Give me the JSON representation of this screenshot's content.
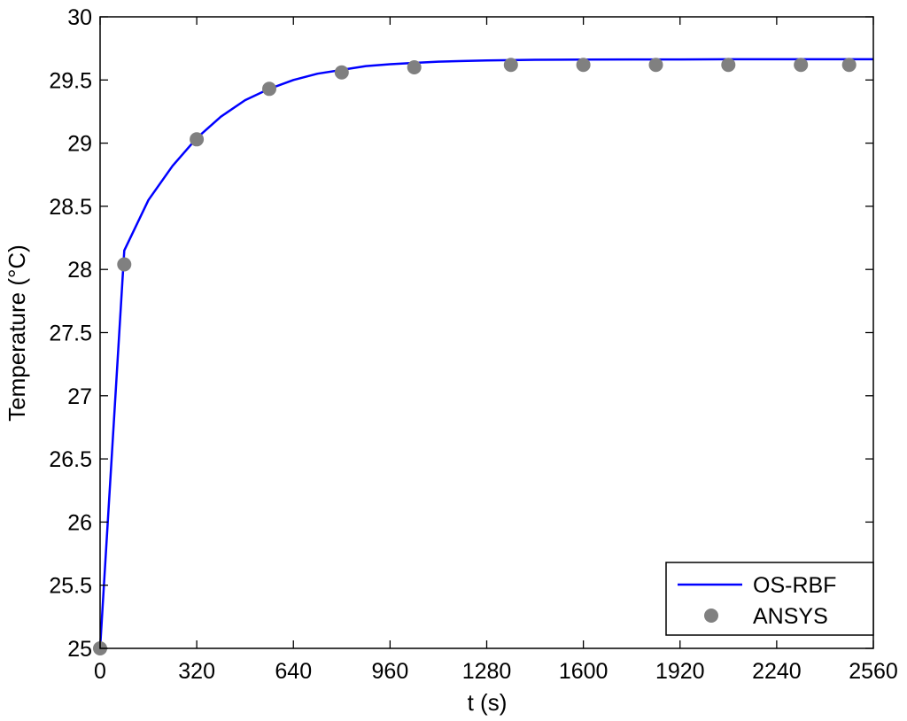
{
  "chart_data": {
    "type": "line",
    "title": "",
    "xlabel": "t (s)",
    "ylabel": "Temperature (°C)",
    "xlim": [
      0,
      2560
    ],
    "ylim": [
      25,
      30
    ],
    "x_ticks": [
      0,
      320,
      640,
      960,
      1280,
      1600,
      1920,
      2240,
      2560
    ],
    "y_ticks": [
      25,
      25.5,
      26,
      26.5,
      27,
      27.5,
      28,
      28.5,
      29,
      29.5,
      30
    ],
    "x_tick_labels": [
      "0",
      "320",
      "640",
      "960",
      "1280",
      "1600",
      "1920",
      "2240",
      "2560"
    ],
    "y_tick_labels": [
      "25",
      "25.5",
      "26",
      "26.5",
      "27",
      "27.5",
      "28",
      "28.5",
      "29",
      "29.5",
      "30"
    ],
    "grid": false,
    "legend_position": "bottom-right",
    "series": [
      {
        "name": "OS-RBF",
        "style": "line",
        "color": "#0000ff",
        "x": [
          0,
          80,
          160,
          240,
          320,
          400,
          480,
          560,
          640,
          720,
          800,
          880,
          960,
          1040,
          1120,
          1200,
          1280,
          1440,
          1600,
          1760,
          1920,
          2080,
          2240,
          2400,
          2560
        ],
        "y": [
          25.0,
          28.15,
          28.55,
          28.82,
          29.04,
          29.21,
          29.34,
          29.43,
          29.5,
          29.55,
          29.58,
          29.61,
          29.625,
          29.635,
          29.645,
          29.65,
          29.655,
          29.66,
          29.662,
          29.663,
          29.663,
          29.664,
          29.664,
          29.664,
          29.664
        ]
      },
      {
        "name": "ANSYS",
        "style": "scatter",
        "color": "#808080",
        "x": [
          0,
          80,
          320,
          560,
          800,
          1040,
          1360,
          1600,
          1840,
          2080,
          2320,
          2480
        ],
        "y": [
          25.0,
          28.04,
          29.03,
          29.43,
          29.56,
          29.6,
          29.62,
          29.62,
          29.62,
          29.62,
          29.62,
          29.62
        ]
      }
    ]
  }
}
